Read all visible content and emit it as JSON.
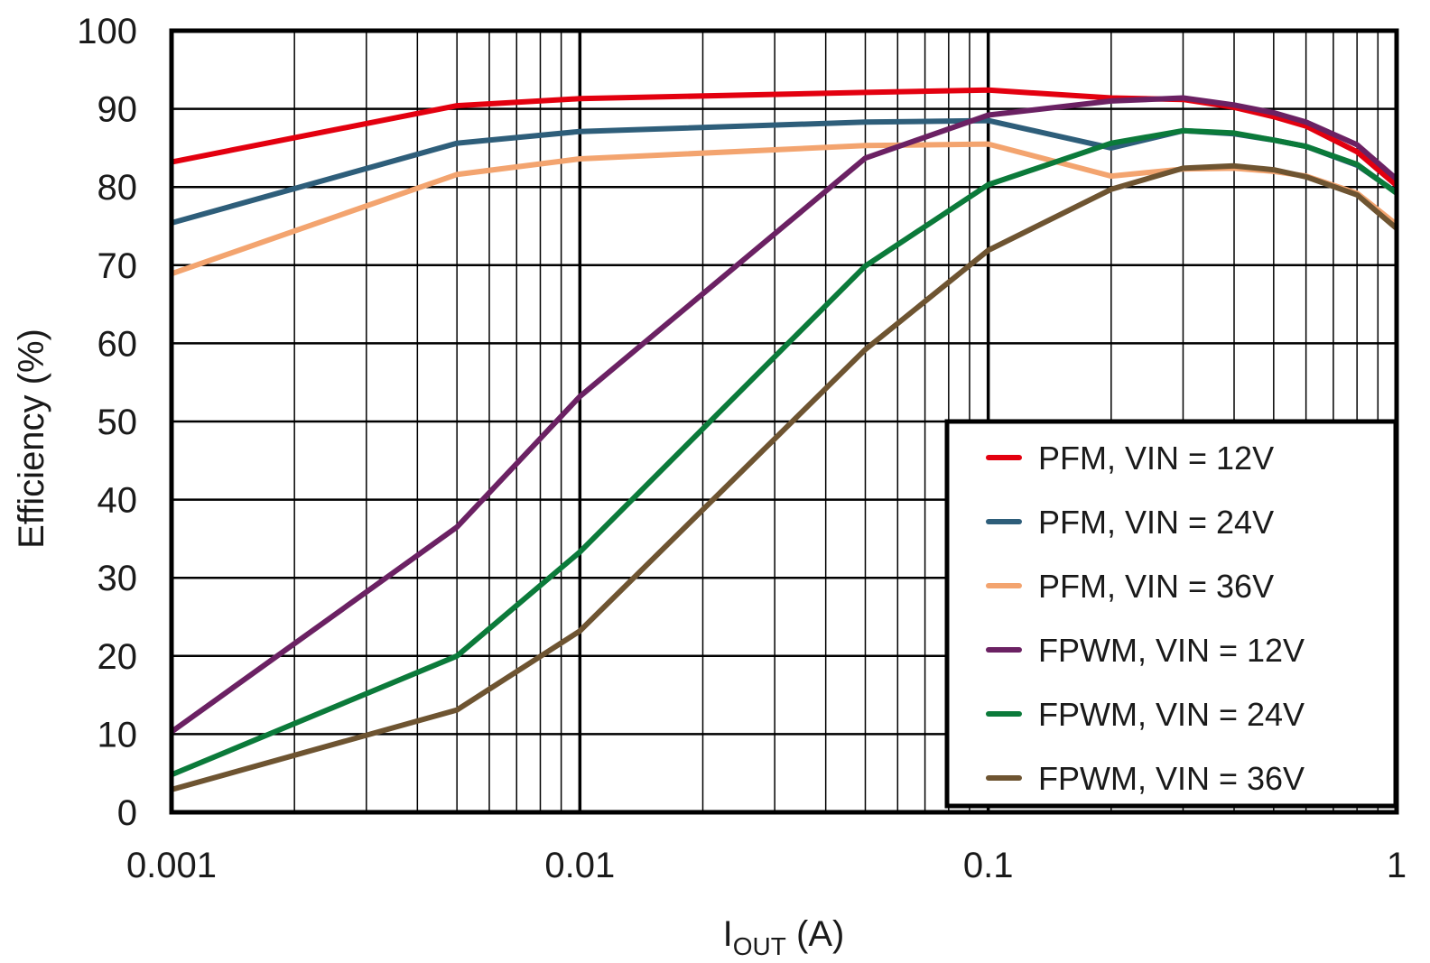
{
  "chart_data": {
    "type": "line",
    "title": "",
    "xlabel_main": "I",
    "xlabel_sub": "OUT",
    "xlabel_unit": " (A)",
    "ylabel": "Efficiency (%)",
    "xscale": "log",
    "xlim": [
      0.001,
      1
    ],
    "ylim": [
      0,
      100
    ],
    "grid": true,
    "legend_position": "bottom-right",
    "x_ticks": [
      {
        "value": 0.001,
        "label": "0.001"
      },
      {
        "value": 0.01,
        "label": "0.01"
      },
      {
        "value": 0.1,
        "label": "0.1"
      },
      {
        "value": 1,
        "label": "1"
      }
    ],
    "y_ticks": [
      {
        "value": 0,
        "label": "0"
      },
      {
        "value": 10,
        "label": "10"
      },
      {
        "value": 20,
        "label": "20"
      },
      {
        "value": 30,
        "label": "30"
      },
      {
        "value": 40,
        "label": "40"
      },
      {
        "value": 50,
        "label": "50"
      },
      {
        "value": 60,
        "label": "60"
      },
      {
        "value": 70,
        "label": "70"
      },
      {
        "value": 80,
        "label": "80"
      },
      {
        "value": 90,
        "label": "90"
      },
      {
        "value": 100,
        "label": "100"
      }
    ],
    "series": [
      {
        "name": "PFM, VIN = 12V",
        "color": "#e3000f",
        "x": [
          0.001,
          0.005,
          0.01,
          0.05,
          0.1,
          0.2,
          0.3,
          0.4,
          0.5,
          0.6,
          0.8,
          1.0
        ],
        "y": [
          83.2,
          90.4,
          91.3,
          92.1,
          92.4,
          91.4,
          91.2,
          90.2,
          89.0,
          87.8,
          84.5,
          80.2
        ]
      },
      {
        "name": "PFM, VIN = 24V",
        "color": "#2e5e7a",
        "x": [
          0.001,
          0.005,
          0.01,
          0.05,
          0.1,
          0.2,
          0.3,
          0.4,
          0.5,
          0.6,
          0.8,
          1.0
        ],
        "y": [
          75.4,
          85.6,
          87.1,
          88.3,
          88.5,
          85.0,
          87.2,
          86.8,
          86.0,
          85.2,
          82.8,
          79.3
        ]
      },
      {
        "name": "PFM, VIN = 36V",
        "color": "#f3a46f",
        "x": [
          0.001,
          0.005,
          0.01,
          0.05,
          0.1,
          0.2,
          0.3,
          0.4,
          0.5,
          0.6,
          0.8,
          1.0
        ],
        "y": [
          68.9,
          81.6,
          83.6,
          85.3,
          85.5,
          81.4,
          82.3,
          82.4,
          82.0,
          81.4,
          79.2,
          75.2
        ]
      },
      {
        "name": "FPWM, VIN = 12V",
        "color": "#6b2163",
        "x": [
          0.001,
          0.005,
          0.01,
          0.05,
          0.1,
          0.2,
          0.3,
          0.4,
          0.5,
          0.6,
          0.8,
          1.0
        ],
        "y": [
          10.3,
          36.5,
          53.2,
          83.7,
          89.2,
          91.0,
          91.4,
          90.5,
          89.5,
          88.3,
          85.4,
          81.0
        ]
      },
      {
        "name": "FPWM, VIN = 24V",
        "color": "#0b7a3a",
        "x": [
          0.001,
          0.005,
          0.01,
          0.05,
          0.1,
          0.2,
          0.3,
          0.4,
          0.5,
          0.6,
          0.8,
          1.0
        ],
        "y": [
          4.8,
          20.0,
          33.3,
          69.9,
          80.3,
          85.6,
          87.2,
          86.9,
          86.0,
          85.2,
          82.9,
          79.2
        ]
      },
      {
        "name": "FPWM, VIN = 36V",
        "color": "#6e5431",
        "x": [
          0.001,
          0.005,
          0.01,
          0.05,
          0.1,
          0.2,
          0.3,
          0.4,
          0.5,
          0.6,
          0.8,
          1.0
        ],
        "y": [
          2.9,
          13.1,
          23.2,
          59.2,
          71.9,
          79.7,
          82.4,
          82.7,
          82.2,
          81.3,
          79.0,
          74.7
        ]
      }
    ]
  }
}
